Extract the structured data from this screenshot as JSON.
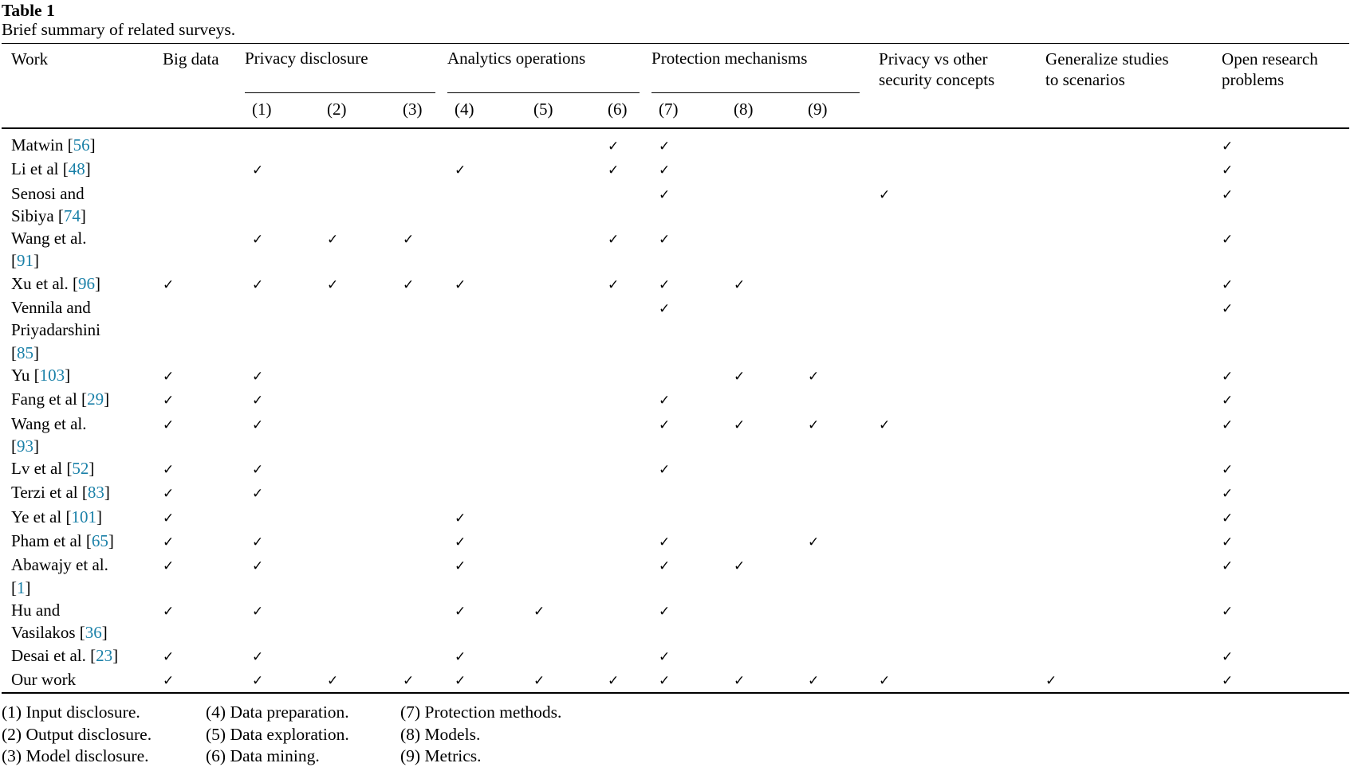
{
  "title": "Table 1",
  "caption": "Brief summary of related surveys.",
  "check_glyph": "✓",
  "colors": {
    "text": "#000000",
    "citation_link": "#1a80a8",
    "rule": "#000000",
    "background": "#ffffff"
  },
  "table": {
    "headers": {
      "work": "Work",
      "big_data": "Big data",
      "privacy_vs": "Privacy vs other\nsecurity concepts",
      "generalize": "Generalize studies\nto scenarios",
      "open_research": "Open research\nproblems"
    },
    "groups": [
      {
        "label": "Privacy disclosure",
        "subcols": [
          "(1)",
          "(2)",
          "(3)"
        ]
      },
      {
        "label": "Analytics operations",
        "subcols": [
          "(4)",
          "(5)",
          "(6)"
        ]
      },
      {
        "label": "Protection mechanisms",
        "subcols": [
          "(7)",
          "(8)",
          "(9)"
        ]
      }
    ],
    "check_columns": [
      "big_data",
      "(1)",
      "(2)",
      "(3)",
      "(4)",
      "(5)",
      "(6)",
      "(7)",
      "(8)",
      "(9)",
      "privacy_vs_other_security_concepts",
      "generalize_studies_to_scenarios",
      "open_research_problems"
    ],
    "rows": [
      {
        "work_pre": "Matwin [",
        "cite": "56",
        "work_post": "]",
        "checks": [
          0,
          0,
          0,
          0,
          0,
          0,
          1,
          1,
          0,
          0,
          0,
          0,
          1
        ]
      },
      {
        "work_pre": "Li et al [",
        "cite": "48",
        "work_post": "]",
        "checks": [
          0,
          1,
          0,
          0,
          1,
          0,
          1,
          1,
          0,
          0,
          0,
          0,
          1
        ]
      },
      {
        "work_pre": "Senosi and\nSibiya [",
        "cite": "74",
        "work_post": "]",
        "checks": [
          0,
          0,
          0,
          0,
          0,
          0,
          0,
          1,
          0,
          0,
          1,
          0,
          1
        ]
      },
      {
        "work_pre": "Wang et al.\n[",
        "cite": "91",
        "work_post": "]",
        "checks": [
          0,
          1,
          1,
          1,
          0,
          0,
          1,
          1,
          0,
          0,
          0,
          0,
          1
        ]
      },
      {
        "work_pre": "Xu et al. [",
        "cite": "96",
        "work_post": "]",
        "checks": [
          1,
          1,
          1,
          1,
          1,
          0,
          1,
          1,
          1,
          0,
          0,
          0,
          1
        ]
      },
      {
        "work_pre": "Vennila and\nPriyadarshini\n[",
        "cite": "85",
        "work_post": "]",
        "checks": [
          0,
          0,
          0,
          0,
          0,
          0,
          0,
          1,
          0,
          0,
          0,
          0,
          1
        ]
      },
      {
        "work_pre": "Yu [",
        "cite": "103",
        "work_post": "]",
        "checks": [
          1,
          1,
          0,
          0,
          0,
          0,
          0,
          0,
          1,
          1,
          0,
          0,
          1
        ]
      },
      {
        "work_pre": "Fang et al [",
        "cite": "29",
        "work_post": "]",
        "checks": [
          1,
          1,
          0,
          0,
          0,
          0,
          0,
          1,
          0,
          0,
          0,
          0,
          1
        ]
      },
      {
        "work_pre": "Wang et al.\n[",
        "cite": "93",
        "work_post": "]",
        "checks": [
          1,
          1,
          0,
          0,
          0,
          0,
          0,
          1,
          1,
          1,
          1,
          0,
          1
        ]
      },
      {
        "work_pre": "Lv et al [",
        "cite": "52",
        "work_post": "]",
        "checks": [
          1,
          1,
          0,
          0,
          0,
          0,
          0,
          1,
          0,
          0,
          0,
          0,
          1
        ]
      },
      {
        "work_pre": "Terzi et al [",
        "cite": "83",
        "work_post": "]",
        "checks": [
          1,
          1,
          0,
          0,
          0,
          0,
          0,
          0,
          0,
          0,
          0,
          0,
          1
        ]
      },
      {
        "work_pre": "Ye et al [",
        "cite": "101",
        "work_post": "]",
        "checks": [
          1,
          0,
          0,
          0,
          1,
          0,
          0,
          0,
          0,
          0,
          0,
          0,
          1
        ]
      },
      {
        "work_pre": "Pham et al [",
        "cite": "65",
        "work_post": "]",
        "checks": [
          1,
          1,
          0,
          0,
          1,
          0,
          0,
          1,
          0,
          1,
          0,
          0,
          1
        ]
      },
      {
        "work_pre": "Abawajy et al.\n[",
        "cite": "1",
        "work_post": "]",
        "checks": [
          1,
          1,
          0,
          0,
          1,
          0,
          0,
          1,
          1,
          0,
          0,
          0,
          1
        ]
      },
      {
        "work_pre": "Hu and\nVasilakos [",
        "cite": "36",
        "work_post": "]",
        "checks": [
          1,
          1,
          0,
          0,
          1,
          1,
          0,
          1,
          0,
          0,
          0,
          0,
          1
        ]
      },
      {
        "work_pre": "Desai et al. [",
        "cite": "23",
        "work_post": "]",
        "checks": [
          1,
          1,
          0,
          0,
          1,
          0,
          0,
          1,
          0,
          0,
          0,
          0,
          1
        ]
      },
      {
        "work_pre": "Our work",
        "cite": "",
        "work_post": "",
        "checks": [
          1,
          1,
          1,
          1,
          1,
          1,
          1,
          1,
          1,
          1,
          1,
          1,
          1
        ]
      }
    ]
  },
  "legend": {
    "columns": [
      [
        "(1) Input disclosure.",
        "(2) Output disclosure.",
        "(3) Model disclosure."
      ],
      [
        "(4) Data preparation.",
        "(5) Data exploration.",
        "(6) Data mining."
      ],
      [
        "(7) Protection methods.",
        "(8) Models.",
        "(9) Metrics."
      ]
    ]
  }
}
